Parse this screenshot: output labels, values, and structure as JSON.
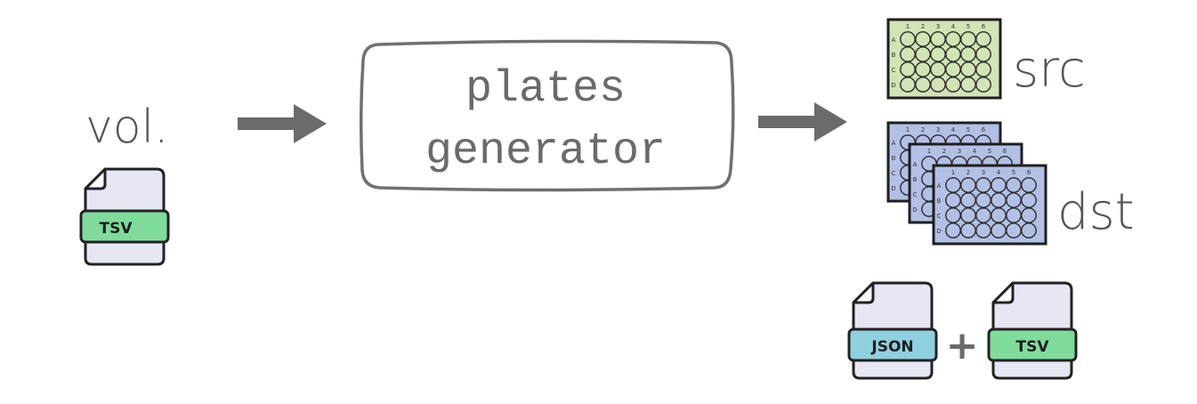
{
  "input": {
    "label": "vol.",
    "file_badge": "TSV"
  },
  "process": {
    "line1": "plates",
    "line2": "generator"
  },
  "output": {
    "src_label": "src",
    "dst_label": "dst",
    "plus": "+",
    "file_badges": [
      "JSON",
      "TSV"
    ]
  },
  "plate": {
    "col_labels": [
      "1",
      "2",
      "3",
      "4",
      "5",
      "6"
    ],
    "row_labels": [
      "A",
      "B",
      "C",
      "D"
    ]
  },
  "colors": {
    "arrow": "#6b6b6b",
    "src_plate": "#d2e3b5",
    "dst_plate": "#b3c0e6",
    "tsv_badge": "#7fdc9c",
    "json_badge": "#8fd0df",
    "file_body": "#e6e7f2"
  }
}
